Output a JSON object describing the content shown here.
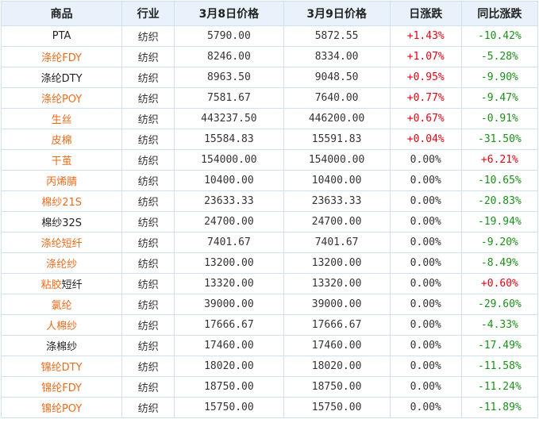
{
  "header": {
    "product": "商品",
    "industry": "行业",
    "price_mar8": "3月8日价格",
    "price_mar9": "3月9日价格",
    "daily_change": "日涨跌",
    "yoy_change": "同比涨跌"
  },
  "colors": {
    "link_orange": "#ee6b1a",
    "rise_red": "#e60012",
    "fall_green": "#1a8f1a",
    "header_bg": "#e9f2fb",
    "border": "#cfe0f1"
  },
  "rows": [
    {
      "name": "PTA",
      "name_style": "black",
      "industry": "纺织",
      "p8": "5790.00",
      "p9": "5872.55",
      "day": "+1.43%",
      "day_dir": "up",
      "yoy": "-10.42%",
      "yoy_dir": "down"
    },
    {
      "name": "涤纶FDY",
      "name_style": "orange",
      "industry": "纺织",
      "p8": "8246.00",
      "p9": "8334.00",
      "day": "+1.07%",
      "day_dir": "up",
      "yoy": "-5.28%",
      "yoy_dir": "down"
    },
    {
      "name": "涤纶DTY",
      "name_style": "black",
      "industry": "纺织",
      "p8": "8963.50",
      "p9": "9048.50",
      "day": "+0.95%",
      "day_dir": "up",
      "yoy": "-9.90%",
      "yoy_dir": "down"
    },
    {
      "name": "涤纶POY",
      "name_style": "orange",
      "industry": "纺织",
      "p8": "7581.67",
      "p9": "7640.00",
      "day": "+0.77%",
      "day_dir": "up",
      "yoy": "-9.47%",
      "yoy_dir": "down"
    },
    {
      "name": "生丝",
      "name_style": "orange",
      "industry": "纺织",
      "p8": "443237.50",
      "p9": "446200.00",
      "day": "+0.67%",
      "day_dir": "up",
      "yoy": "-0.91%",
      "yoy_dir": "down"
    },
    {
      "name": "皮棉",
      "name_style": "orange",
      "industry": "纺织",
      "p8": "15584.83",
      "p9": "15591.83",
      "day": "+0.04%",
      "day_dir": "up",
      "yoy": "-31.50%",
      "yoy_dir": "down"
    },
    {
      "name": "干茧",
      "name_style": "orange",
      "industry": "纺织",
      "p8": "154000.00",
      "p9": "154000.00",
      "day": "0.00%",
      "day_dir": "flat",
      "yoy": "+6.21%",
      "yoy_dir": "up"
    },
    {
      "name": "丙烯腈",
      "name_style": "orange",
      "industry": "纺织",
      "p8": "10400.00",
      "p9": "10400.00",
      "day": "0.00%",
      "day_dir": "flat",
      "yoy": "-10.65%",
      "yoy_dir": "down"
    },
    {
      "name": "棉纱21S",
      "name_style": "orange",
      "industry": "纺织",
      "p8": "23633.33",
      "p9": "23633.33",
      "day": "0.00%",
      "day_dir": "flat",
      "yoy": "-20.83%",
      "yoy_dir": "down"
    },
    {
      "name": "棉纱32S",
      "name_style": "black",
      "industry": "纺织",
      "p8": "24700.00",
      "p9": "24700.00",
      "day": "0.00%",
      "day_dir": "flat",
      "yoy": "-19.94%",
      "yoy_dir": "down"
    },
    {
      "name": "涤纶短纤",
      "name_style": "orange",
      "industry": "纺织",
      "p8": "7401.67",
      "p9": "7401.67",
      "day": "0.00%",
      "day_dir": "flat",
      "yoy": "-9.20%",
      "yoy_dir": "down"
    },
    {
      "name": "涤纶纱",
      "name_style": "orange",
      "industry": "纺织",
      "p8": "13200.00",
      "p9": "13200.00",
      "day": "0.00%",
      "day_dir": "flat",
      "yoy": "-8.49%",
      "yoy_dir": "down"
    },
    {
      "name_parts": [
        "粘胶",
        "短纤"
      ],
      "name_style": "split",
      "industry": "纺织",
      "p8": "13320.00",
      "p9": "13320.00",
      "day": "0.00%",
      "day_dir": "flat",
      "yoy": "+0.60%",
      "yoy_dir": "up"
    },
    {
      "name": "氯纶",
      "name_style": "orange",
      "industry": "纺织",
      "p8": "39000.00",
      "p9": "39000.00",
      "day": "0.00%",
      "day_dir": "flat",
      "yoy": "-29.60%",
      "yoy_dir": "down"
    },
    {
      "name": "人棉纱",
      "name_style": "orange",
      "industry": "纺织",
      "p8": "17666.67",
      "p9": "17666.67",
      "day": "0.00%",
      "day_dir": "flat",
      "yoy": "-4.33%",
      "yoy_dir": "down"
    },
    {
      "name": "涤棉纱",
      "name_style": "black",
      "industry": "纺织",
      "p8": "17460.00",
      "p9": "17460.00",
      "day": "0.00%",
      "day_dir": "flat",
      "yoy": "-17.49%",
      "yoy_dir": "down"
    },
    {
      "name": "锦纶DTY",
      "name_style": "orange",
      "industry": "纺织",
      "p8": "18020.00",
      "p9": "18020.00",
      "day": "0.00%",
      "day_dir": "flat",
      "yoy": "-11.58%",
      "yoy_dir": "down"
    },
    {
      "name": "锦纶FDY",
      "name_style": "orange",
      "industry": "纺织",
      "p8": "18750.00",
      "p9": "18750.00",
      "day": "0.00%",
      "day_dir": "flat",
      "yoy": "-11.24%",
      "yoy_dir": "down"
    },
    {
      "name": "锦纶POY",
      "name_style": "orange",
      "industry": "纺织",
      "p8": "15750.00",
      "p9": "15750.00",
      "day": "0.00%",
      "day_dir": "flat",
      "yoy": "-11.89%",
      "yoy_dir": "down"
    }
  ]
}
